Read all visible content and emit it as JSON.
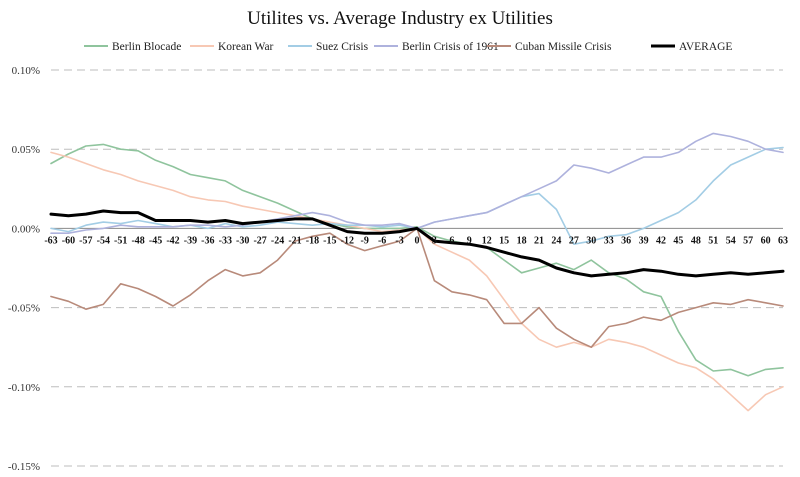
{
  "chart_data": {
    "type": "line",
    "title": "Utilites vs. Average Industry ex Utilities",
    "xlabel": "",
    "ylabel": "",
    "xlim": [
      -63,
      63
    ],
    "ylim": [
      -0.15,
      0.1
    ],
    "x_ticks": [
      -63,
      -60,
      -57,
      -54,
      -51,
      -48,
      -45,
      -42,
      -39,
      -36,
      -33,
      -30,
      -27,
      -24,
      -21,
      -18,
      -15,
      -12,
      -9,
      -6,
      -3,
      0,
      3,
      6,
      9,
      12,
      15,
      18,
      21,
      24,
      27,
      30,
      33,
      36,
      39,
      42,
      45,
      48,
      51,
      54,
      57,
      60,
      63
    ],
    "y_ticks": [
      {
        "value": 0.1,
        "label": "0.10%"
      },
      {
        "value": 0.05,
        "label": "0.05%"
      },
      {
        "value": 0.0,
        "label": "0.00%"
      },
      {
        "value": -0.05,
        "label": "-0.05%"
      },
      {
        "value": -0.1,
        "label": "-0.10%"
      },
      {
        "value": -0.15,
        "label": "-0.15%"
      }
    ],
    "grid": "horizontal dashed",
    "legend_position": "top",
    "series": [
      {
        "name": "Berlin Blocade",
        "color": "#8fc49d",
        "x": [
          -63,
          -60,
          -57,
          -54,
          -51,
          -48,
          -45,
          -42,
          -39,
          -36,
          -33,
          -30,
          -27,
          -24,
          -21,
          -18,
          -15,
          -12,
          -9,
          -6,
          -3,
          0,
          3,
          6,
          9,
          12,
          15,
          18,
          21,
          24,
          27,
          30,
          33,
          36,
          39,
          42,
          45,
          48,
          51,
          54,
          57,
          60,
          63
        ],
        "y": [
          0.041,
          0.047,
          0.052,
          0.053,
          0.05,
          0.049,
          0.043,
          0.039,
          0.034,
          0.032,
          0.03,
          0.024,
          0.02,
          0.016,
          0.011,
          0.006,
          0.003,
          0.001,
          0.0,
          0.0,
          0.0,
          0.001,
          -0.005,
          -0.008,
          -0.01,
          -0.012,
          -0.02,
          -0.028,
          -0.025,
          -0.022,
          -0.026,
          -0.02,
          -0.028,
          -0.032,
          -0.04,
          -0.043,
          -0.065,
          -0.083,
          -0.09,
          -0.089,
          -0.093,
          -0.089,
          -0.088
        ]
      },
      {
        "name": "Korean War",
        "color": "#f7c8b4",
        "x": [
          -63,
          -60,
          -57,
          -54,
          -51,
          -48,
          -45,
          -42,
          -39,
          -36,
          -33,
          -30,
          -27,
          -24,
          -21,
          -18,
          -15,
          -12,
          -9,
          -6,
          -3,
          0,
          3,
          6,
          9,
          12,
          15,
          18,
          21,
          24,
          27,
          30,
          33,
          36,
          39,
          42,
          45,
          48,
          51,
          54,
          57,
          60,
          63
        ],
        "y": [
          0.048,
          0.045,
          0.041,
          0.037,
          0.034,
          0.03,
          0.027,
          0.024,
          0.02,
          0.018,
          0.017,
          0.014,
          0.012,
          0.01,
          0.008,
          0.006,
          0.004,
          0.002,
          0.0,
          -0.002,
          -0.001,
          0.0,
          -0.01,
          -0.015,
          -0.02,
          -0.03,
          -0.045,
          -0.06,
          -0.07,
          -0.075,
          -0.072,
          -0.075,
          -0.07,
          -0.072,
          -0.075,
          -0.08,
          -0.085,
          -0.088,
          -0.095,
          -0.105,
          -0.115,
          -0.105,
          -0.1
        ]
      },
      {
        "name": "Suez Crisis",
        "color": "#a3cde5",
        "x": [
          -63,
          -60,
          -57,
          -54,
          -51,
          -48,
          -45,
          -42,
          -39,
          -36,
          -33,
          -30,
          -27,
          -24,
          -21,
          -18,
          -15,
          -12,
          -9,
          -6,
          -3,
          0,
          3,
          6,
          9,
          12,
          15,
          18,
          21,
          24,
          27,
          30,
          33,
          36,
          39,
          42,
          45,
          48,
          51,
          54,
          57,
          60,
          63
        ],
        "y": [
          0.0,
          -0.002,
          0.002,
          0.004,
          0.003,
          0.005,
          0.003,
          0.001,
          0.002,
          0.0,
          0.003,
          0.001,
          0.002,
          0.004,
          0.003,
          0.002,
          0.003,
          0.002,
          0.002,
          0.001,
          0.002,
          0.0,
          0.004,
          0.006,
          0.008,
          0.01,
          0.015,
          0.02,
          0.022,
          0.012,
          -0.01,
          -0.008,
          -0.005,
          -0.004,
          0.0,
          0.005,
          0.01,
          0.018,
          0.03,
          0.04,
          0.045,
          0.05,
          0.051
        ]
      },
      {
        "name": "Berlin Crisis of 1961",
        "color": "#aeb2dd",
        "x": [
          -63,
          -60,
          -57,
          -54,
          -51,
          -48,
          -45,
          -42,
          -39,
          -36,
          -33,
          -30,
          -27,
          -24,
          -21,
          -18,
          -15,
          -12,
          -9,
          -6,
          -3,
          0,
          3,
          6,
          9,
          12,
          15,
          18,
          21,
          24,
          27,
          30,
          33,
          36,
          39,
          42,
          45,
          48,
          51,
          54,
          57,
          60,
          63
        ],
        "y": [
          -0.003,
          -0.003,
          -0.001,
          0.0,
          0.002,
          0.001,
          0.001,
          0.001,
          0.002,
          0.002,
          0.001,
          0.002,
          0.004,
          0.006,
          0.008,
          0.01,
          0.008,
          0.004,
          0.002,
          0.002,
          0.003,
          0.0,
          0.004,
          0.006,
          0.008,
          0.01,
          0.015,
          0.02,
          0.025,
          0.03,
          0.04,
          0.038,
          0.035,
          0.04,
          0.045,
          0.045,
          0.048,
          0.055,
          0.06,
          0.058,
          0.055,
          0.05,
          0.048
        ]
      },
      {
        "name": "Cuban Missile Crisis",
        "color": "#b88a7a",
        "x": [
          -63,
          -60,
          -57,
          -54,
          -51,
          -48,
          -45,
          -42,
          -39,
          -36,
          -33,
          -30,
          -27,
          -24,
          -21,
          -18,
          -15,
          -12,
          -9,
          -6,
          -3,
          0,
          3,
          6,
          9,
          12,
          15,
          18,
          21,
          24,
          27,
          30,
          33,
          36,
          39,
          42,
          45,
          48,
          51,
          54,
          57,
          60,
          63
        ],
        "y": [
          -0.043,
          -0.046,
          -0.051,
          -0.048,
          -0.035,
          -0.038,
          -0.043,
          -0.049,
          -0.042,
          -0.033,
          -0.026,
          -0.03,
          -0.028,
          -0.02,
          -0.008,
          -0.005,
          -0.003,
          -0.01,
          -0.014,
          -0.011,
          -0.008,
          0.0,
          -0.033,
          -0.04,
          -0.042,
          -0.045,
          -0.06,
          -0.06,
          -0.05,
          -0.063,
          -0.07,
          -0.075,
          -0.062,
          -0.06,
          -0.056,
          -0.058,
          -0.053,
          -0.05,
          -0.047,
          -0.048,
          -0.045,
          -0.047,
          -0.049
        ]
      },
      {
        "name": "AVERAGE",
        "color": "#000000",
        "x": [
          -63,
          -60,
          -57,
          -54,
          -51,
          -48,
          -45,
          -42,
          -39,
          -36,
          -33,
          -30,
          -27,
          -24,
          -21,
          -18,
          -15,
          -12,
          -9,
          -6,
          -3,
          0,
          3,
          6,
          9,
          12,
          15,
          18,
          21,
          24,
          27,
          30,
          33,
          36,
          39,
          42,
          45,
          48,
          51,
          54,
          57,
          60,
          63
        ],
        "y": [
          0.009,
          0.008,
          0.009,
          0.011,
          0.01,
          0.01,
          0.005,
          0.005,
          0.005,
          0.004,
          0.005,
          0.003,
          0.004,
          0.005,
          0.006,
          0.006,
          0.002,
          -0.002,
          -0.003,
          -0.003,
          -0.002,
          0.0,
          -0.008,
          -0.009,
          -0.01,
          -0.012,
          -0.015,
          -0.018,
          -0.02,
          -0.025,
          -0.028,
          -0.03,
          -0.029,
          -0.028,
          -0.026,
          -0.027,
          -0.029,
          -0.03,
          -0.029,
          -0.028,
          -0.029,
          -0.028,
          -0.027
        ]
      }
    ]
  }
}
